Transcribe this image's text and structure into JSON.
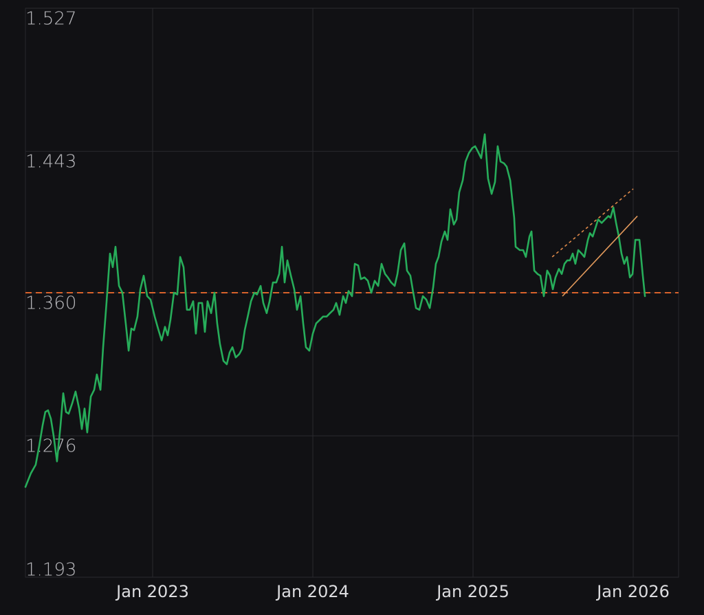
{
  "chart_data": {
    "type": "line",
    "color": "#27ad5a",
    "background": "#111114",
    "grid": true,
    "xlim": [
      2022.206,
      2026.283
    ],
    "xticks": [
      {
        "value": 2023,
        "label": "Jan 2023"
      },
      {
        "value": 2024,
        "label": "Jan 2024"
      },
      {
        "value": 2025,
        "label": "Jan 2025"
      },
      {
        "value": 2026,
        "label": "Jan 2026"
      }
    ],
    "ylim": [
      1.193,
      1.527
    ],
    "yticks": [
      1.193,
      1.276,
      {
        "value": 1.36,
        "label": "1.360"
      },
      1.443,
      1.527
    ],
    "reference_line": {
      "value": 1.36,
      "color": "#d9622b",
      "style": "dashed"
    },
    "trend_lines": [
      {
        "x": [
          2025.558,
          2026.026
        ],
        "y": [
          1.358,
          1.405
        ],
        "color": "#e39a5c",
        "style": "solid"
      },
      {
        "x": [
          2025.494,
          2026.0
        ],
        "y": [
          1.381,
          1.421
        ],
        "color": "#e08a4a",
        "style": "dotted"
      }
    ],
    "x": [
      2022.206,
      2022.24,
      2022.27,
      2022.292,
      2022.313,
      2022.33,
      2022.347,
      2022.365,
      2022.382,
      2022.403,
      2022.425,
      2022.442,
      2022.459,
      2022.476,
      2022.498,
      2022.519,
      2022.541,
      2022.558,
      2022.575,
      2022.592,
      2022.614,
      2022.635,
      2022.652,
      2022.674,
      2022.691,
      2022.712,
      2022.734,
      2022.751,
      2022.768,
      2022.79,
      2022.811,
      2022.832,
      2022.85,
      2022.867,
      2022.884,
      2022.905,
      2022.923,
      2022.944,
      2022.966,
      2022.987,
      2023.013,
      2023.034,
      2023.056,
      2023.077,
      2023.094,
      2023.111,
      2023.133,
      2023.154,
      2023.172,
      2023.193,
      2023.214,
      2023.232,
      2023.253,
      2023.27,
      2023.287,
      2023.309,
      2023.326,
      2023.343,
      2023.365,
      2023.386,
      2023.403,
      2023.42,
      2023.442,
      2023.463,
      2023.481,
      2023.498,
      2023.519,
      2023.541,
      2023.558,
      2023.575,
      2023.596,
      2023.614,
      2023.635,
      2023.652,
      2023.674,
      2023.691,
      2023.712,
      2023.73,
      2023.751,
      2023.772,
      2023.79,
      2023.807,
      2023.824,
      2023.841,
      2023.863,
      2023.884,
      2023.901,
      2023.923,
      2023.94,
      2023.957,
      2023.978,
      2024.0,
      2024.021,
      2024.043,
      2024.064,
      2024.086,
      2024.107,
      2024.129,
      2024.146,
      2024.167,
      2024.189,
      2024.206,
      2024.223,
      2024.245,
      2024.262,
      2024.283,
      2024.3,
      2024.322,
      2024.343,
      2024.365,
      2024.386,
      2024.408,
      2024.429,
      2024.451,
      2024.468,
      2024.489,
      2024.511,
      2024.528,
      2024.549,
      2024.571,
      2024.588,
      2024.609,
      2024.627,
      2024.644,
      2024.665,
      2024.687,
      2024.708,
      2024.73,
      2024.751,
      2024.768,
      2024.785,
      2024.803,
      2024.824,
      2024.841,
      2024.858,
      2024.88,
      2024.897,
      2024.914,
      2024.936,
      2024.953,
      2024.974,
      2024.996,
      2025.013,
      2025.03,
      2025.051,
      2025.073,
      2025.094,
      2025.116,
      2025.137,
      2025.154,
      2025.172,
      2025.193,
      2025.21,
      2025.232,
      2025.257,
      2025.266,
      2025.292,
      2025.313,
      2025.33,
      2025.352,
      2025.365,
      2025.382,
      2025.403,
      2025.421,
      2025.442,
      2025.463,
      2025.481,
      2025.498,
      2025.515,
      2025.536,
      2025.554,
      2025.571,
      2025.588,
      2025.605,
      2025.622,
      2025.639,
      2025.657,
      2025.678,
      2025.695,
      2025.717,
      2025.73,
      2025.747,
      2025.764,
      2025.781,
      2025.803,
      2025.824,
      2025.845,
      2025.858,
      2025.876,
      2025.893,
      2025.91,
      2025.927,
      2025.944,
      2025.961,
      2025.979,
      2025.996,
      2026.013,
      2026.039,
      2026.06,
      2026.073
    ],
    "values": [
      1.246,
      1.254,
      1.259,
      1.27,
      1.282,
      1.29,
      1.291,
      1.286,
      1.276,
      1.261,
      1.282,
      1.301,
      1.29,
      1.289,
      1.295,
      1.302,
      1.292,
      1.28,
      1.292,
      1.278,
      1.299,
      1.303,
      1.312,
      1.303,
      1.328,
      1.354,
      1.383,
      1.375,
      1.387,
      1.364,
      1.36,
      1.342,
      1.326,
      1.339,
      1.338,
      1.346,
      1.362,
      1.37,
      1.358,
      1.356,
      1.346,
      1.339,
      1.332,
      1.34,
      1.335,
      1.344,
      1.36,
      1.359,
      1.381,
      1.375,
      1.35,
      1.35,
      1.355,
      1.336,
      1.354,
      1.354,
      1.337,
      1.355,
      1.348,
      1.36,
      1.342,
      1.33,
      1.32,
      1.318,
      1.325,
      1.328,
      1.322,
      1.324,
      1.327,
      1.338,
      1.347,
      1.355,
      1.36,
      1.359,
      1.364,
      1.354,
      1.348,
      1.355,
      1.366,
      1.366,
      1.371,
      1.387,
      1.366,
      1.379,
      1.37,
      1.362,
      1.35,
      1.358,
      1.342,
      1.328,
      1.326,
      1.336,
      1.342,
      1.344,
      1.346,
      1.346,
      1.348,
      1.35,
      1.354,
      1.347,
      1.358,
      1.354,
      1.361,
      1.358,
      1.377,
      1.376,
      1.368,
      1.369,
      1.367,
      1.36,
      1.367,
      1.364,
      1.377,
      1.371,
      1.369,
      1.366,
      1.364,
      1.371,
      1.385,
      1.389,
      1.373,
      1.37,
      1.36,
      1.351,
      1.35,
      1.358,
      1.356,
      1.351,
      1.363,
      1.377,
      1.381,
      1.39,
      1.396,
      1.391,
      1.409,
      1.4,
      1.403,
      1.419,
      1.426,
      1.437,
      1.442,
      1.445,
      1.446,
      1.443,
      1.439,
      1.453,
      1.427,
      1.418,
      1.425,
      1.446,
      1.437,
      1.436,
      1.434,
      1.426,
      1.404,
      1.387,
      1.385,
      1.385,
      1.381,
      1.393,
      1.396,
      1.373,
      1.371,
      1.37,
      1.358,
      1.373,
      1.37,
      1.362,
      1.369,
      1.374,
      1.371,
      1.377,
      1.379,
      1.379,
      1.383,
      1.377,
      1.385,
      1.383,
      1.381,
      1.391,
      1.395,
      1.393,
      1.398,
      1.403,
      1.401,
      1.403,
      1.405,
      1.404,
      1.41,
      1.401,
      1.393,
      1.383,
      1.377,
      1.381,
      1.369,
      1.371,
      1.391,
      1.391,
      1.37,
      1.358
    ]
  }
}
